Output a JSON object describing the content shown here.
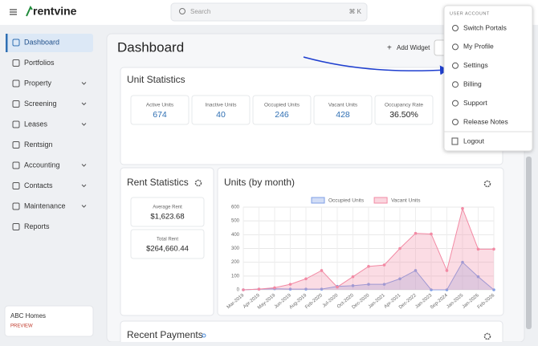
{
  "brand": "rentvine",
  "search": {
    "placeholder": "Search",
    "shortcut": "⌘ K"
  },
  "nav": [
    "Dashboard",
    "Portfolios",
    "Property",
    "Screening",
    "Leases",
    "Rentsign",
    "Accounting",
    "Contacts",
    "Maintenance",
    "Reports"
  ],
  "nav_expandable": [
    false,
    false,
    true,
    true,
    true,
    false,
    true,
    true,
    true,
    false
  ],
  "account": {
    "name": "ABC Homes",
    "status": "PREVIEW"
  },
  "page_title": "Dashboard",
  "add_widget": "Add Widget",
  "unit_statistics": {
    "title": "Unit Statistics",
    "stats": [
      {
        "label": "Active Units",
        "value": "674"
      },
      {
        "label": "Inactive Units",
        "value": "40"
      },
      {
        "label": "Occupied Units",
        "value": "246"
      },
      {
        "label": "Vacant Units",
        "value": "428"
      },
      {
        "label": "Occupancy Rate",
        "value": "36.50%"
      }
    ]
  },
  "rent_statistics": {
    "title": "Rent Statistics",
    "stats": [
      {
        "label": "Average Rent",
        "value": "$1,623.68"
      },
      {
        "label": "Total Rent",
        "value": "$264,660.44"
      }
    ]
  },
  "chart_data": {
    "type": "area",
    "title": "Units (by month)",
    "categories": [
      "Mar-2019",
      "Apr-2019",
      "May-2019",
      "Jun-2019",
      "Aug-2019",
      "Feb-2020",
      "Jul-2020",
      "Oct-2020",
      "Dec-2020",
      "Jan-2021",
      "Apr-2021",
      "Dec-2022",
      "Jan-2023",
      "Sep-2024",
      "Jan-2025",
      "Jan-2026",
      "Feb-2026"
    ],
    "series": [
      {
        "name": "Occupied Units",
        "color": "#7f9fe6",
        "values": [
          0,
          5,
          8,
          5,
          5,
          5,
          25,
          30,
          40,
          40,
          80,
          140,
          0,
          0,
          200,
          95,
          0
        ]
      },
      {
        "name": "Vacant Units",
        "color": "#f28aa4",
        "values": [
          0,
          5,
          15,
          40,
          80,
          140,
          20,
          95,
          170,
          180,
          300,
          410,
          405,
          140,
          590,
          295,
          295
        ]
      }
    ],
    "ylim": [
      0,
      600
    ],
    "yticks": [
      0,
      100,
      200,
      300,
      400,
      500,
      600
    ],
    "grid": true,
    "legend": "top"
  },
  "recent_payments": {
    "title": "Recent Payments"
  },
  "user_menu": {
    "header": "USER ACCOUNT",
    "items": [
      "Switch Portals",
      "My Profile",
      "Settings",
      "Billing",
      "Support",
      "Release Notes"
    ],
    "logout": "Logout"
  }
}
